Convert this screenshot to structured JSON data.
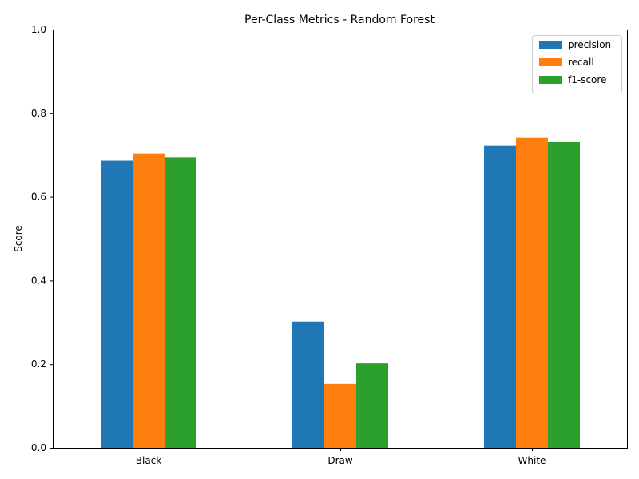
{
  "chart_data": {
    "type": "bar",
    "title": "Per-Class Metrics - Random Forest",
    "xlabel": "",
    "ylabel": "Score",
    "categories": [
      "Black",
      "Draw",
      "White"
    ],
    "series": [
      {
        "name": "precision",
        "color": "#1f77b4",
        "values": [
          0.686,
          0.302,
          0.722
        ]
      },
      {
        "name": "recall",
        "color": "#ff7f0e",
        "values": [
          0.703,
          0.153,
          0.741
        ]
      },
      {
        "name": "f1-score",
        "color": "#2ca02c",
        "values": [
          0.694,
          0.202,
          0.731
        ]
      }
    ],
    "ylim": [
      0,
      1.0
    ],
    "yticks": [
      "0.0",
      "0.2",
      "0.4",
      "0.6",
      "0.8",
      "1.0"
    ],
    "grid": false,
    "legend_position": "top-right"
  }
}
